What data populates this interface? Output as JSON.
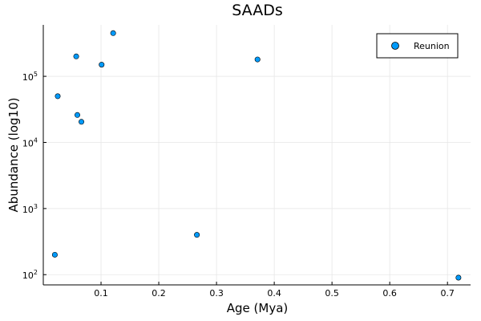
{
  "chart_data": {
    "type": "scatter",
    "title": "SAADs",
    "xlabel": "Age (Mya)",
    "ylabel": "Abundance (log10)",
    "xlim": [
      0.0,
      0.74
    ],
    "ylim": [
      70,
      600000
    ],
    "yscale": "log10",
    "grid": true,
    "legend_position": "top-right",
    "x_ticks": [
      {
        "value": 0.1,
        "label": "0.1"
      },
      {
        "value": 0.2,
        "label": "0.2"
      },
      {
        "value": 0.3,
        "label": "0.3"
      },
      {
        "value": 0.4,
        "label": "0.4"
      },
      {
        "value": 0.5,
        "label": "0.5"
      },
      {
        "value": 0.6,
        "label": "0.6"
      },
      {
        "value": 0.7,
        "label": "0.7"
      }
    ],
    "y_ticks": [
      {
        "value": 100,
        "base": "10",
        "exp": "2"
      },
      {
        "value": 1000,
        "base": "10",
        "exp": "3"
      },
      {
        "value": 10000,
        "base": "10",
        "exp": "4"
      },
      {
        "value": 100000,
        "base": "10",
        "exp": "5"
      }
    ],
    "series": [
      {
        "name": "Reunion",
        "color": "#009AFA",
        "points": [
          {
            "x": 0.121,
            "y": 450000
          },
          {
            "x": 0.057,
            "y": 200000
          },
          {
            "x": 0.371,
            "y": 180000
          },
          {
            "x": 0.101,
            "y": 150000
          },
          {
            "x": 0.025,
            "y": 50000
          },
          {
            "x": 0.059,
            "y": 26000
          },
          {
            "x": 0.066,
            "y": 20500
          },
          {
            "x": 0.266,
            "y": 400
          },
          {
            "x": 0.02,
            "y": 200
          },
          {
            "x": 0.719,
            "y": 90
          }
        ]
      }
    ]
  }
}
